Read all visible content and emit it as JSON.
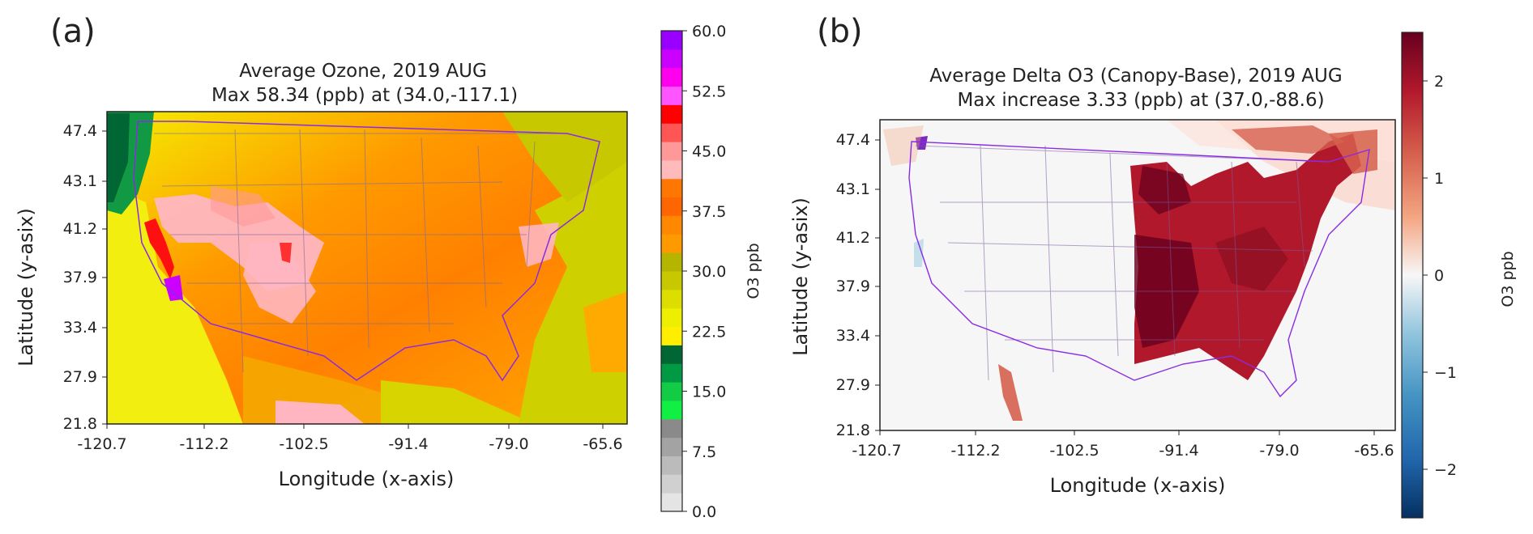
{
  "panels": [
    {
      "panel_label": "(a)",
      "title_line1": "Average Ozone, 2019 AUG",
      "title_line2": "Max 58.34 (ppb) at (34.0,-117.1)",
      "xlabel": "Longitude (x-axis)",
      "ylabel": "Latitude (y-asix)",
      "colorbar_label": "O3 ppb"
    },
    {
      "panel_label": "(b)",
      "title_line1": "Average Delta O3 (Canopy-Base), 2019 AUG",
      "title_line2": "Max increase 3.33 (ppb) at (37.0,-88.6)",
      "xlabel": "Longitude (x-axis)",
      "ylabel": "Latitude (y-asix)",
      "colorbar_label": "O3 ppb"
    }
  ],
  "chart_data": [
    {
      "type": "heatmap",
      "title": "Average Ozone, 2019 AUG",
      "subtitle": "Max 58.34 (ppb) at (34.0,-117.1)",
      "xlabel": "Longitude (x-axis)",
      "ylabel": "Latitude (y-asix)",
      "x_ticks": [
        "-120.7",
        "-112.2",
        "-102.5",
        "-91.4",
        "-79.0",
        "-65.6"
      ],
      "y_ticks": [
        "47.4",
        "43.1",
        "41.2",
        "37.9",
        "33.4",
        "27.9",
        "21.8"
      ],
      "colorbar": {
        "label": "O3 ppb",
        "range": [
          0,
          60
        ],
        "tick_values": [
          0,
          7.5,
          15,
          22.5,
          30,
          37.5,
          45,
          52.5,
          60
        ],
        "tick_labels": [
          "0.0",
          "7.5",
          "15.0",
          "22.5",
          "30.0",
          "37.5",
          "45.0",
          "52.5",
          "60.0"
        ],
        "colors": [
          "#e4e4e4",
          "#d0d0d0",
          "#bbbbbb",
          "#a3a3a3",
          "#8a8a8a",
          "#11ee44",
          "#11cc44",
          "#009944",
          "#006633",
          "#ffee00",
          "#eeee00",
          "#dddd00",
          "#c8c800",
          "#b5b500",
          "#ff9900",
          "#ff8800",
          "#ff6600",
          "#ff7700",
          "#ffbbbb",
          "#ff9999",
          "#ff5555",
          "#ff0000",
          "#ff55ff",
          "#ff00ee",
          "#cc00ff",
          "#9900ff"
        ]
      },
      "max_value": 58.34,
      "max_location": {
        "lat": 34.0,
        "lon": -117.1
      }
    },
    {
      "type": "heatmap",
      "title": "Average Delta O3 (Canopy-Base), 2019 AUG",
      "subtitle": "Max increase 3.33 (ppb) at (37.0,-88.6)",
      "xlabel": "Longitude (x-axis)",
      "ylabel": "Latitude (y-asix)",
      "x_ticks": [
        "-120.7",
        "-112.2",
        "-102.5",
        "-91.4",
        "-79.0",
        "-65.6"
      ],
      "y_ticks": [
        "47.4",
        "43.1",
        "41.2",
        "37.9",
        "33.4",
        "27.9",
        "21.8"
      ],
      "colorbar": {
        "label": "O3 ppb",
        "range": [
          -2.5,
          2.5
        ],
        "tick_values": [
          2,
          1,
          0,
          -1,
          -2
        ],
        "tick_labels": [
          "2",
          "1",
          "0",
          "−1",
          "−2"
        ],
        "colormap": "RdBu_r"
      },
      "max_value": 3.33,
      "max_location": {
        "lat": 37.0,
        "lon": -88.6
      }
    }
  ]
}
